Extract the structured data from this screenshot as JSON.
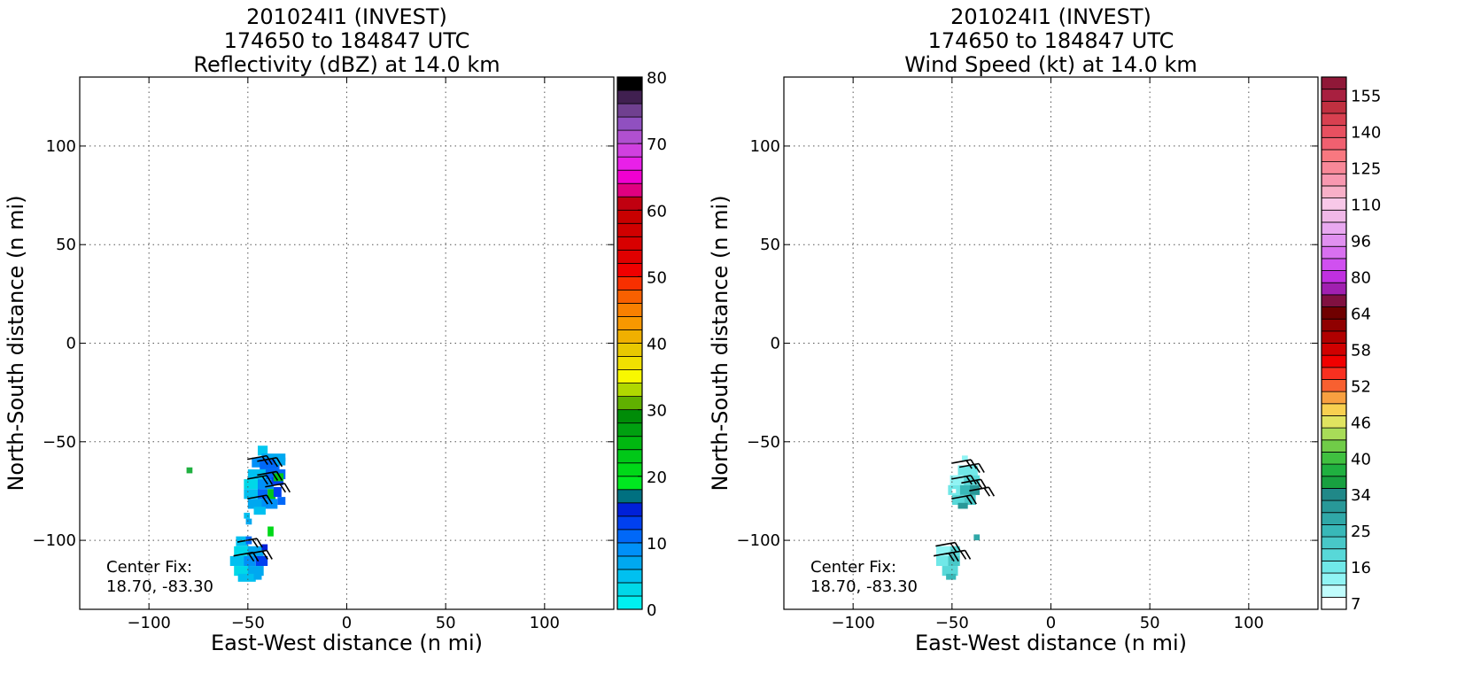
{
  "chart_data": [
    {
      "type": "heatmap",
      "title_lines": [
        "201024I1 (INVEST)",
        "174650 to 184847 UTC",
        "Reflectivity (dBZ) at 14.0 km"
      ],
      "xlabel": "East-West distance (n mi)",
      "ylabel": "North-South distance (n mi)",
      "xlim": [
        -135,
        135
      ],
      "ylim": [
        -135,
        135
      ],
      "x_ticks": [
        -100,
        -50,
        0,
        50,
        100
      ],
      "y_ticks": [
        -100,
        -50,
        0,
        50,
        100
      ],
      "x_tick_labels": [
        "−100",
        "−50",
        "0",
        "50",
        "100"
      ],
      "y_tick_labels": [
        "−100",
        "−50",
        "0",
        "50",
        "100"
      ],
      "grid": true,
      "annotation": [
        "Center Fix:",
        "18.70, -83.30"
      ],
      "colorbar": {
        "min": 0,
        "max": 80,
        "ticks": [
          0,
          10,
          20,
          30,
          40,
          50,
          60,
          70,
          80
        ],
        "tick_labels": [
          "0",
          "10",
          "20",
          "30",
          "40",
          "50",
          "60",
          "70",
          "80"
        ],
        "colors": [
          "#00f0f0",
          "#00d8e8",
          "#00c0f0",
          "#00a8f0",
          "#0090f8",
          "#0068f8",
          "#0040f0",
          "#0020d8",
          "#007080",
          "#00e820",
          "#00d818",
          "#00c818",
          "#00b810",
          "#00a010",
          "#008c08",
          "#60b000",
          "#b0d800",
          "#f8f800",
          "#f0e000",
          "#e8c800",
          "#f0b000",
          "#f89800",
          "#f88000",
          "#f86000",
          "#f83000",
          "#f00000",
          "#e00000",
          "#d80000",
          "#d00000",
          "#c80000",
          "#c00010",
          "#e00080",
          "#f000d0",
          "#e820e8",
          "#d040e0",
          "#b050d0",
          "#9050c0",
          "#704090",
          "#402050",
          "#000000"
        ]
      },
      "echo_cells": [
        {
          "x": -81,
          "y": -63,
          "w": 3,
          "h": 3,
          "c": "#20b040"
        },
        {
          "x": -45,
          "y": -52,
          "w": 5,
          "h": 5,
          "c": "#00c8f0"
        },
        {
          "x": -43,
          "y": -56,
          "w": 12,
          "h": 4,
          "c": "#00a8f0"
        },
        {
          "x": -48,
          "y": -58,
          "w": 8,
          "h": 5,
          "c": "#0090f8"
        },
        {
          "x": -44,
          "y": -59,
          "w": 10,
          "h": 5,
          "c": "#0068f8"
        },
        {
          "x": -36,
          "y": -58,
          "w": 5,
          "h": 4,
          "c": "#00a8f0"
        },
        {
          "x": -50,
          "y": -64,
          "w": 10,
          "h": 5,
          "c": "#00c0f0"
        },
        {
          "x": -41,
          "y": -64,
          "w": 10,
          "h": 5,
          "c": "#0068f8"
        },
        {
          "x": -52,
          "y": -69,
          "w": 8,
          "h": 5,
          "c": "#00d8e8"
        },
        {
          "x": -45,
          "y": -69,
          "w": 8,
          "h": 5,
          "c": "#0090f8"
        },
        {
          "x": -38,
          "y": -68,
          "w": 6,
          "h": 4,
          "c": "#0040f0"
        },
        {
          "x": -37,
          "y": -66,
          "w": 5,
          "h": 4,
          "c": "#00c818"
        },
        {
          "x": -52,
          "y": -74,
          "w": 8,
          "h": 5,
          "c": "#00c0f0"
        },
        {
          "x": -45,
          "y": -74,
          "w": 5,
          "h": 5,
          "c": "#0068f8"
        },
        {
          "x": -40,
          "y": -74,
          "w": 4,
          "h": 6,
          "c": "#00c818"
        },
        {
          "x": -37,
          "y": -73,
          "w": 4,
          "h": 5,
          "c": "#0040f0"
        },
        {
          "x": -50,
          "y": -79,
          "w": 8,
          "h": 5,
          "c": "#00a8f0"
        },
        {
          "x": -43,
          "y": -79,
          "w": 8,
          "h": 5,
          "c": "#0090f8"
        },
        {
          "x": -35,
          "y": -78,
          "w": 4,
          "h": 4,
          "c": "#0068f8"
        },
        {
          "x": -47,
          "y": -83,
          "w": 6,
          "h": 4,
          "c": "#00c0f0"
        },
        {
          "x": -52,
          "y": -86,
          "w": 3,
          "h": 3,
          "c": "#00c0f0"
        },
        {
          "x": -51,
          "y": -89,
          "w": 3,
          "h": 3,
          "c": "#00a8f0"
        },
        {
          "x": -40,
          "y": -93,
          "w": 3,
          "h": 5,
          "c": "#00d818"
        },
        {
          "x": -56,
          "y": -98,
          "w": 6,
          "h": 5,
          "c": "#00c0f0"
        },
        {
          "x": -51,
          "y": -98,
          "w": 3,
          "h": 4,
          "c": "#0068f8"
        },
        {
          "x": -57,
          "y": -103,
          "w": 8,
          "h": 5,
          "c": "#00d8e8"
        },
        {
          "x": -50,
          "y": -103,
          "w": 8,
          "h": 5,
          "c": "#00a8f0"
        },
        {
          "x": -43,
          "y": -102,
          "w": 3,
          "h": 3,
          "c": "#0020d8"
        },
        {
          "x": -59,
          "y": -108,
          "w": 8,
          "h": 5,
          "c": "#00c0f0"
        },
        {
          "x": -52,
          "y": -108,
          "w": 6,
          "h": 5,
          "c": "#0090f8"
        },
        {
          "x": -46,
          "y": -108,
          "w": 6,
          "h": 5,
          "c": "#0040f0"
        },
        {
          "x": -57,
          "y": -113,
          "w": 8,
          "h": 5,
          "c": "#00d8e8"
        },
        {
          "x": -50,
          "y": -113,
          "w": 8,
          "h": 5,
          "c": "#00a8f0"
        },
        {
          "x": -55,
          "y": -117,
          "w": 9,
          "h": 4,
          "c": "#00c0f0"
        },
        {
          "x": -47,
          "y": -117,
          "w": 4,
          "h": 3,
          "c": "#00a8f0"
        }
      ],
      "wind_barbs": [
        {
          "x": -44,
          "y": -58
        },
        {
          "x": -39,
          "y": -59
        },
        {
          "x": -44,
          "y": -68
        },
        {
          "x": -39,
          "y": -66
        },
        {
          "x": -44,
          "y": -78
        },
        {
          "x": -35,
          "y": -72
        },
        {
          "x": -49,
          "y": -100
        },
        {
          "x": -44,
          "y": -106
        },
        {
          "x": -51,
          "y": -107
        }
      ]
    },
    {
      "type": "heatmap",
      "title_lines": [
        "201024I1 (INVEST)",
        "174650 to 184847 UTC",
        "Wind Speed (kt) at 14.0 km"
      ],
      "xlabel": "East-West distance (n mi)",
      "ylabel": "North-South distance (n mi)",
      "xlim": [
        -135,
        135
      ],
      "ylim": [
        -135,
        135
      ],
      "x_ticks": [
        -100,
        -50,
        0,
        50,
        100
      ],
      "y_ticks": [
        -100,
        -50,
        0,
        50,
        100
      ],
      "x_tick_labels": [
        "−100",
        "−50",
        "0",
        "50",
        "100"
      ],
      "y_tick_labels": [
        "−100",
        "−50",
        "0",
        "50",
        "100"
      ],
      "grid": true,
      "annotation": [
        "Center Fix:",
        "18.70, -83.30"
      ],
      "colorbar": {
        "levels": 44,
        "tick_levels": [
          0,
          3,
          6,
          9,
          12,
          15,
          18,
          21,
          24,
          27,
          30,
          33,
          36,
          39,
          42
        ],
        "tick_labels": [
          "7",
          "16",
          "25",
          "34",
          "40",
          "46",
          "52",
          "58",
          "64",
          "80",
          "96",
          "110",
          "125",
          "140",
          "155"
        ],
        "colors": [
          "#ffffff",
          "#c0fcfc",
          "#90f4f4",
          "#70e8e8",
          "#58d8d8",
          "#48c8c8",
          "#38b8b8",
          "#30a8a8",
          "#289898",
          "#208888",
          "#18a040",
          "#20b040",
          "#40c040",
          "#70cc48",
          "#a8dc58",
          "#e0e460",
          "#f8d050",
          "#f8a040",
          "#f86030",
          "#f83020",
          "#f00000",
          "#d00000",
          "#b00000",
          "#900000",
          "#700000",
          "#801040",
          "#a020b0",
          "#c030e0",
          "#d050f0",
          "#d870f0",
          "#e090f0",
          "#e8a8f0",
          "#f0b8e8",
          "#f8c8e8",
          "#f8b0c8",
          "#f898b0",
          "#f88898",
          "#f87880",
          "#f06070",
          "#e85060",
          "#d84050",
          "#c03040",
          "#a82040",
          "#901838"
        ]
      },
      "echo_cells": [
        {
          "x": -45,
          "y": -57,
          "w": 3,
          "h": 3,
          "c": "#90f4f4"
        },
        {
          "x": -47,
          "y": -62,
          "w": 10,
          "h": 5,
          "c": "#70e8e8"
        },
        {
          "x": -51,
          "y": -67,
          "w": 8,
          "h": 5,
          "c": "#90f4f4"
        },
        {
          "x": -44,
          "y": -67,
          "w": 8,
          "h": 5,
          "c": "#58d8d8"
        },
        {
          "x": -52,
          "y": -72,
          "w": 6,
          "h": 5,
          "c": "#70e8e8"
        },
        {
          "x": -46,
          "y": -72,
          "w": 6,
          "h": 5,
          "c": "#38b8b8"
        },
        {
          "x": -41,
          "y": -72,
          "w": 5,
          "h": 5,
          "c": "#289898"
        },
        {
          "x": -50,
          "y": -77,
          "w": 6,
          "h": 5,
          "c": "#58d8d8"
        },
        {
          "x": -44,
          "y": -77,
          "w": 6,
          "h": 5,
          "c": "#48c8c8"
        },
        {
          "x": -47,
          "y": -81,
          "w": 5,
          "h": 3,
          "c": "#289898"
        },
        {
          "x": -50,
          "y": -74,
          "w": 2,
          "h": 2,
          "c": "#ffffff"
        },
        {
          "x": -39,
          "y": -97,
          "w": 3,
          "h": 3,
          "c": "#30a8a8"
        },
        {
          "x": -58,
          "y": -103,
          "w": 7,
          "h": 5,
          "c": "#90f4f4"
        },
        {
          "x": -51,
          "y": -103,
          "w": 5,
          "h": 5,
          "c": "#58d8d8"
        },
        {
          "x": -58,
          "y": -108,
          "w": 6,
          "h": 5,
          "c": "#70e8e8"
        },
        {
          "x": -52,
          "y": -108,
          "w": 6,
          "h": 5,
          "c": "#48c8c8"
        },
        {
          "x": -55,
          "y": -113,
          "w": 8,
          "h": 5,
          "c": "#58d8d8"
        },
        {
          "x": -53,
          "y": -117,
          "w": 5,
          "h": 3,
          "c": "#38b8b8"
        }
      ],
      "wind_barbs": [
        {
          "x": -44,
          "y": -60
        },
        {
          "x": -40,
          "y": -62
        },
        {
          "x": -44,
          "y": -68
        },
        {
          "x": -39,
          "y": -70
        },
        {
          "x": -44,
          "y": -78
        },
        {
          "x": -35,
          "y": -74
        },
        {
          "x": -52,
          "y": -102
        },
        {
          "x": -47,
          "y": -106
        },
        {
          "x": -53,
          "y": -107
        }
      ]
    }
  ]
}
